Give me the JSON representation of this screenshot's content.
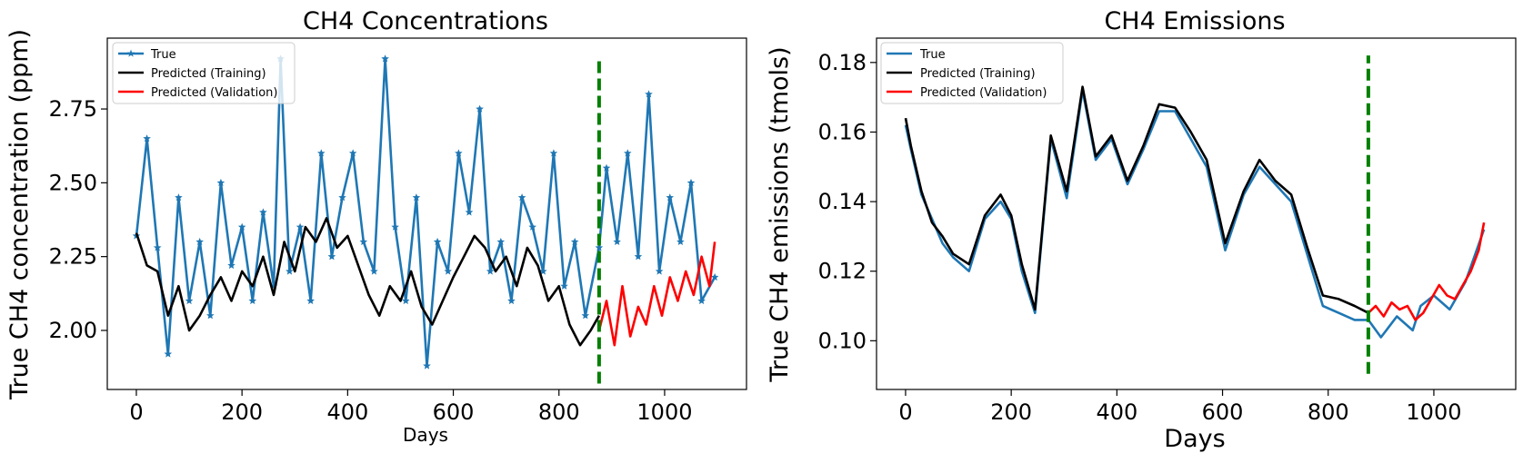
{
  "chart_data": [
    {
      "type": "line",
      "title": "CH4 Concentrations",
      "xlabel": "Days",
      "ylabel": "True CH4 concentration (ppm)",
      "xlim": [
        -55,
        1155
      ],
      "ylim": [
        1.8,
        2.99
      ],
      "xticks": [
        0,
        200,
        400,
        600,
        800,
        1000
      ],
      "yticks": [
        2.0,
        2.25,
        2.5,
        2.75
      ],
      "ytick_labels": [
        "2.00",
        "2.25",
        "2.50",
        "2.75"
      ],
      "split_day": 876,
      "split_range": [
        1.82,
        2.93
      ],
      "legend": {
        "position": "top-left",
        "entries": [
          "True",
          "Predicted (Training)",
          "Predicted (Validation)"
        ]
      },
      "series": [
        {
          "name": "True",
          "color": "#1f77b4",
          "marker": "star",
          "x": [
            0,
            20,
            40,
            60,
            80,
            100,
            120,
            140,
            160,
            180,
            200,
            220,
            240,
            260,
            273,
            290,
            310,
            330,
            350,
            370,
            390,
            410,
            430,
            450,
            471,
            490,
            510,
            530,
            550,
            570,
            590,
            610,
            630,
            650,
            670,
            690,
            710,
            730,
            750,
            770,
            790,
            810,
            830,
            850,
            876,
            890,
            910,
            930,
            950,
            970,
            990,
            1010,
            1030,
            1050,
            1070,
            1095
          ],
          "y": [
            2.32,
            2.65,
            2.28,
            1.92,
            2.45,
            2.1,
            2.3,
            2.05,
            2.5,
            2.22,
            2.35,
            2.1,
            2.4,
            2.15,
            2.92,
            2.2,
            2.35,
            2.1,
            2.6,
            2.25,
            2.45,
            2.6,
            2.3,
            2.2,
            2.92,
            2.35,
            2.1,
            2.45,
            1.88,
            2.3,
            2.2,
            2.6,
            2.4,
            2.75,
            2.2,
            2.3,
            2.1,
            2.45,
            2.35,
            2.2,
            2.6,
            2.15,
            2.3,
            2.05,
            2.28,
            2.55,
            2.3,
            2.6,
            2.25,
            2.8,
            2.2,
            2.45,
            2.3,
            2.5,
            2.1,
            2.18
          ]
        },
        {
          "name": "Predicted (Training)",
          "color": "#000000",
          "x": [
            0,
            20,
            40,
            60,
            80,
            100,
            120,
            140,
            160,
            180,
            200,
            220,
            240,
            260,
            280,
            300,
            320,
            340,
            360,
            380,
            400,
            420,
            440,
            460,
            480,
            500,
            520,
            540,
            560,
            580,
            600,
            620,
            640,
            660,
            680,
            700,
            720,
            740,
            760,
            780,
            800,
            820,
            840,
            860,
            876
          ],
          "y": [
            2.33,
            2.22,
            2.2,
            2.05,
            2.15,
            2.0,
            2.05,
            2.12,
            2.18,
            2.1,
            2.2,
            2.15,
            2.25,
            2.12,
            2.3,
            2.2,
            2.35,
            2.3,
            2.38,
            2.28,
            2.32,
            2.22,
            2.12,
            2.05,
            2.15,
            2.1,
            2.2,
            2.08,
            2.02,
            2.1,
            2.18,
            2.25,
            2.32,
            2.28,
            2.2,
            2.25,
            2.15,
            2.28,
            2.22,
            2.1,
            2.15,
            2.02,
            1.95,
            2.0,
            2.05
          ]
        },
        {
          "name": "Predicted (Validation)",
          "color": "#ff0000",
          "x": [
            876,
            890,
            905,
            920,
            935,
            950,
            965,
            980,
            995,
            1010,
            1025,
            1040,
            1055,
            1070,
            1085,
            1095
          ],
          "y": [
            2.0,
            2.1,
            1.95,
            2.15,
            1.98,
            2.08,
            2.02,
            2.15,
            2.05,
            2.18,
            2.1,
            2.2,
            2.12,
            2.25,
            2.15,
            2.3
          ]
        }
      ]
    },
    {
      "type": "line",
      "title": "CH4 Emissions",
      "xlabel": "Days",
      "ylabel": "True CH4 emissions (tmols)",
      "xlim": [
        -55,
        1155
      ],
      "ylim": [
        0.086,
        0.187
      ],
      "xticks": [
        0,
        200,
        400,
        600,
        800,
        1000
      ],
      "yticks": [
        0.1,
        0.12,
        0.14,
        0.16,
        0.18
      ],
      "ytick_labels": [
        "0.10",
        "0.12",
        "0.14",
        "0.16",
        "0.18"
      ],
      "split_day": 876,
      "split_range": [
        0.0905,
        0.182
      ],
      "legend": {
        "position": "top-left",
        "entries": [
          "True",
          "Predicted (Training)",
          "Predicted (Validation)"
        ]
      },
      "series": [
        {
          "name": "True",
          "color": "#1f77b4",
          "x": [
            0,
            10,
            30,
            50,
            70,
            90,
            120,
            150,
            180,
            200,
            220,
            245,
            275,
            305,
            335,
            360,
            390,
            420,
            450,
            480,
            510,
            540,
            570,
            605,
            640,
            670,
            700,
            730,
            760,
            790,
            820,
            850,
            876,
            900,
            930,
            960,
            975,
            1000,
            1030,
            1060,
            1095
          ],
          "y": [
            0.162,
            0.155,
            0.142,
            0.135,
            0.128,
            0.124,
            0.12,
            0.135,
            0.14,
            0.135,
            0.12,
            0.108,
            0.158,
            0.141,
            0.172,
            0.152,
            0.158,
            0.145,
            0.155,
            0.166,
            0.166,
            0.158,
            0.15,
            0.126,
            0.142,
            0.15,
            0.145,
            0.14,
            0.125,
            0.11,
            0.108,
            0.106,
            0.106,
            0.101,
            0.107,
            0.103,
            0.11,
            0.113,
            0.109,
            0.117,
            0.132
          ]
        },
        {
          "name": "Predicted (Training)",
          "color": "#000000",
          "x": [
            0,
            10,
            30,
            50,
            70,
            90,
            120,
            150,
            180,
            200,
            220,
            245,
            275,
            305,
            335,
            360,
            390,
            420,
            450,
            480,
            510,
            540,
            570,
            605,
            640,
            670,
            700,
            730,
            760,
            790,
            820,
            850,
            876
          ],
          "y": [
            0.164,
            0.156,
            0.143,
            0.134,
            0.13,
            0.125,
            0.122,
            0.136,
            0.142,
            0.136,
            0.122,
            0.109,
            0.159,
            0.143,
            0.173,
            0.153,
            0.159,
            0.146,
            0.156,
            0.168,
            0.167,
            0.16,
            0.152,
            0.128,
            0.143,
            0.152,
            0.146,
            0.142,
            0.127,
            0.113,
            0.112,
            0.11,
            0.108
          ]
        },
        {
          "name": "Predicted (Validation)",
          "color": "#ff0000",
          "x": [
            876,
            890,
            905,
            920,
            935,
            950,
            965,
            980,
            995,
            1010,
            1025,
            1040,
            1055,
            1070,
            1085,
            1095
          ],
          "y": [
            0.108,
            0.11,
            0.107,
            0.111,
            0.109,
            0.11,
            0.106,
            0.108,
            0.112,
            0.116,
            0.113,
            0.112,
            0.116,
            0.12,
            0.126,
            0.134
          ]
        }
      ]
    }
  ]
}
